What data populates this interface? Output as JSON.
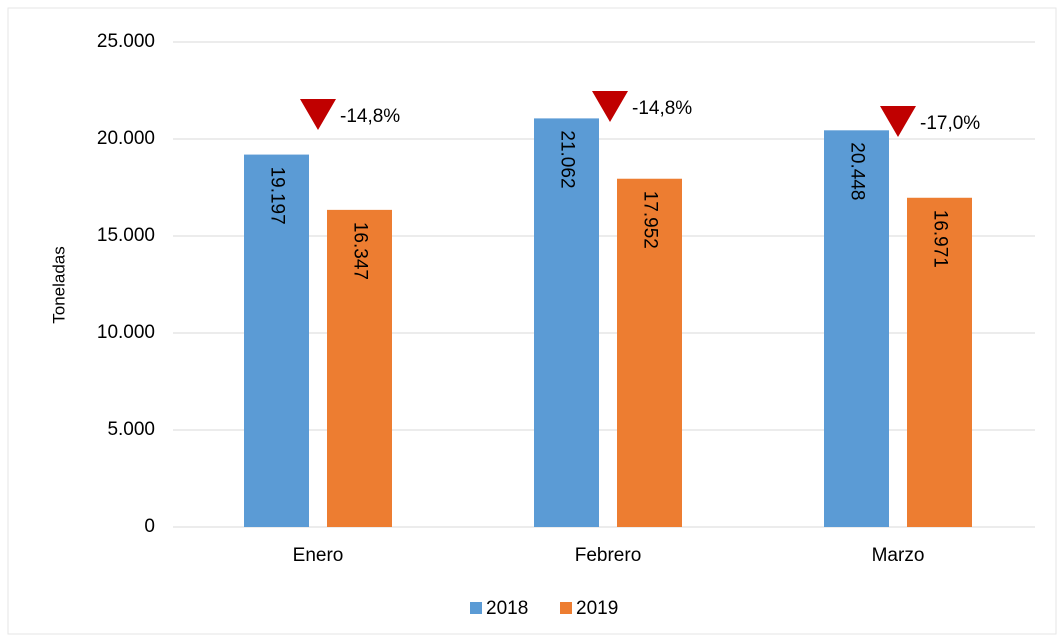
{
  "chart_data": {
    "type": "bar",
    "y_label": "Toneladas",
    "categories": [
      "Enero",
      "Febrero",
      "Marzo"
    ],
    "series": [
      {
        "name": "2018",
        "color": "#5b9bd5",
        "values": [
          19197,
          21062,
          20448
        ],
        "value_labels": [
          "19.197",
          "21.062",
          "20.448"
        ]
      },
      {
        "name": "2019",
        "color": "#ed7d31",
        "values": [
          16347,
          17952,
          16971
        ],
        "value_labels": [
          "16.347",
          "17.952",
          "16.971"
        ]
      }
    ],
    "annotations": [
      "-14,8%",
      "-14,8%",
      "-17,0%"
    ],
    "annotation_color": "#c00000",
    "ylim": [
      0,
      25000
    ],
    "yticks": [
      0,
      {
        "value": 5000,
        "label": "5.000"
      },
      {
        "value": 10000,
        "label": "10.000"
      },
      {
        "value": 15000,
        "label": "15.000"
      },
      {
        "value": 20000,
        "label": "20.000"
      },
      {
        "value": 25000,
        "label": "25.000"
      }
    ],
    "grid": true,
    "legend": "bottom"
  }
}
